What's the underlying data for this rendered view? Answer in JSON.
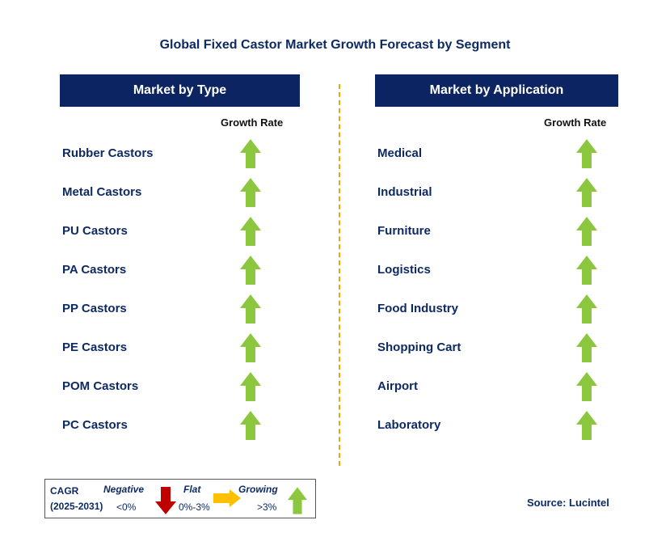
{
  "title": "Global Fixed Castor Market Growth Forecast by Segment",
  "left_panel": {
    "header": "Market by Type",
    "column_label": "Growth Rate",
    "items": [
      {
        "label": "Rubber Castors",
        "trend": "Growing"
      },
      {
        "label": "Metal Castors",
        "trend": "Growing"
      },
      {
        "label": "PU Castors",
        "trend": "Growing"
      },
      {
        "label": "PA Castors",
        "trend": "Growing"
      },
      {
        "label": "PP Castors",
        "trend": "Growing"
      },
      {
        "label": "PE Castors",
        "trend": "Growing"
      },
      {
        "label": "POM Castors",
        "trend": "Growing"
      },
      {
        "label": "PC Castors",
        "trend": "Growing"
      }
    ]
  },
  "right_panel": {
    "header": "Market by Application",
    "column_label": "Growth Rate",
    "items": [
      {
        "label": "Medical",
        "trend": "Growing"
      },
      {
        "label": "Industrial",
        "trend": "Growing"
      },
      {
        "label": "Furniture",
        "trend": "Growing"
      },
      {
        "label": "Logistics",
        "trend": "Growing"
      },
      {
        "label": "Food Industry",
        "trend": "Growing"
      },
      {
        "label": "Shopping Cart",
        "trend": "Growing"
      },
      {
        "label": "Airport",
        "trend": "Growing"
      },
      {
        "label": "Laboratory",
        "trend": "Growing"
      }
    ]
  },
  "legend": {
    "cagr_label": "CAGR",
    "period": "(2025-2031)",
    "negative_label": "Negative",
    "negative_range": "<0%",
    "flat_label": "Flat",
    "flat_range": "0%-3%",
    "growing_label": "Growing",
    "growing_range": ">3%"
  },
  "source": "Source: Lucintel",
  "colors": {
    "header_bg": "#0c2461",
    "text": "#0d2a63",
    "up_arrow": "#8dc63f",
    "down_arrow": "#c00000",
    "flat_arrow": "#ffc000",
    "divider": "#f0a500"
  },
  "icons": {
    "growing": "up-arrow-icon",
    "negative": "down-arrow-icon",
    "flat": "right-arrow-icon"
  }
}
